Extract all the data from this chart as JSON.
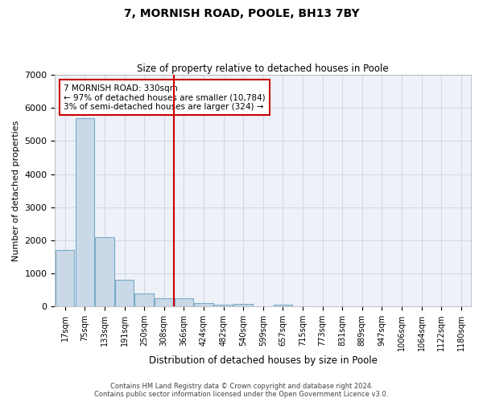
{
  "title": "7, MORNISH ROAD, POOLE, BH13 7BY",
  "subtitle": "Size of property relative to detached houses in Poole",
  "xlabel": "Distribution of detached houses by size in Poole",
  "ylabel": "Number of detached properties",
  "bar_labels": [
    "17sqm",
    "75sqm",
    "133sqm",
    "191sqm",
    "250sqm",
    "308sqm",
    "366sqm",
    "424sqm",
    "482sqm",
    "540sqm",
    "599sqm",
    "657sqm",
    "715sqm",
    "773sqm",
    "831sqm",
    "889sqm",
    "947sqm",
    "1006sqm",
    "1064sqm",
    "1122sqm",
    "1180sqm"
  ],
  "bar_values": [
    1700,
    5700,
    2100,
    800,
    400,
    250,
    250,
    100,
    60,
    80,
    0,
    50,
    0,
    0,
    0,
    0,
    0,
    0,
    0,
    0,
    0
  ],
  "bar_color": "#c9d9e8",
  "bar_edge_color": "#7aaac8",
  "vline_x": 5.5,
  "vline_color": "#cc0000",
  "annotation_box_text": "7 MORNISH ROAD: 330sqm\n← 97% of detached houses are smaller (10,784)\n3% of semi-detached houses are larger (324) →",
  "annotation_box_color": "#cc0000",
  "ylim": [
    0,
    7000
  ],
  "yticks": [
    0,
    1000,
    2000,
    3000,
    4000,
    5000,
    6000,
    7000
  ],
  "grid_color": "#d0d8e8",
  "background_color": "#eef2f8",
  "footer_line1": "Contains HM Land Registry data © Crown copyright and database right 2024.",
  "footer_line2": "Contains public sector information licensed under the Open Government Licence v3.0."
}
